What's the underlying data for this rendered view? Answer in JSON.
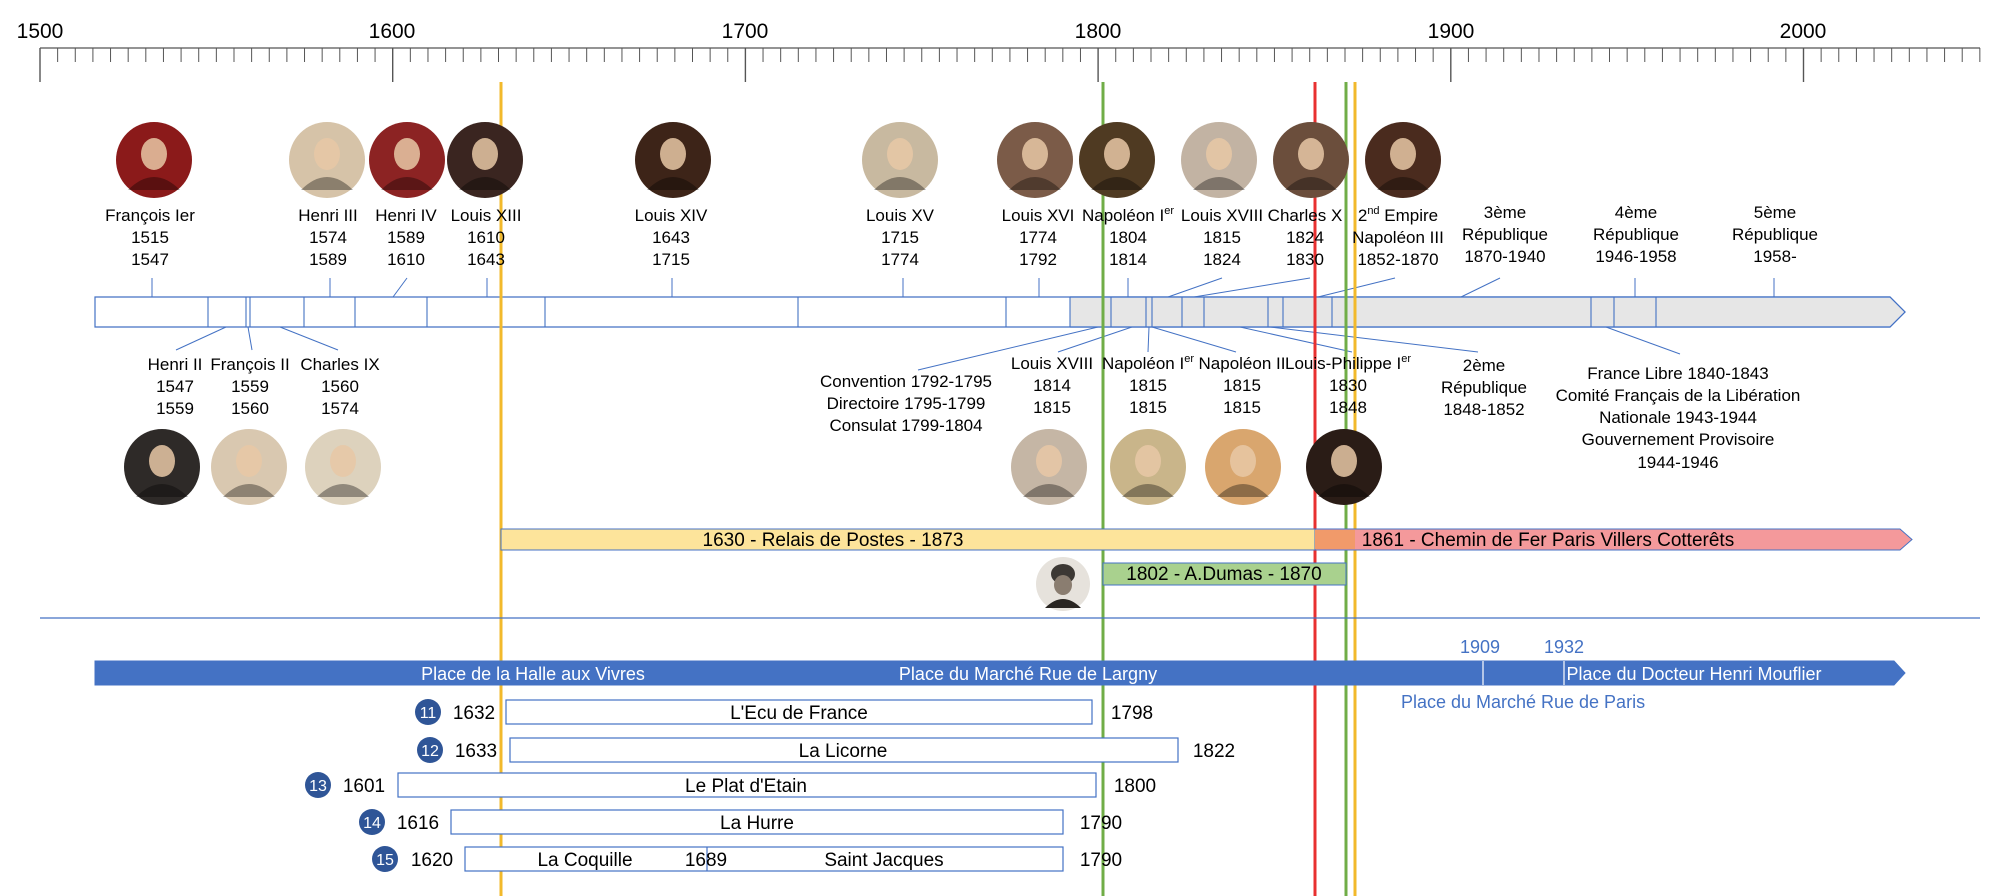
{
  "timeline": {
    "start_year": 1500,
    "end_year": 2050,
    "axis_labels": [
      "1500",
      "1600",
      "1700",
      "1800",
      "1900",
      "2000"
    ]
  },
  "reigns": [
    {
      "id": "francois-ier",
      "name": "François Ier",
      "start": "1515",
      "end": "1547",
      "side": "top",
      "col": "#8b1a1a"
    },
    {
      "id": "henri-ii",
      "name": "Henri II",
      "start": "1547",
      "end": "1559",
      "side": "bottom",
      "col": "#2e2a28"
    },
    {
      "id": "francois-ii",
      "name": "François II",
      "start": "1559",
      "end": "1560",
      "side": "bottom",
      "col": "#d9c8b0"
    },
    {
      "id": "charles-ix",
      "name": "Charles IX",
      "start": "1560",
      "end": "1574",
      "side": "bottom",
      "col": "#ddd2bd"
    },
    {
      "id": "henri-iii",
      "name": "Henri III",
      "start": "1574",
      "end": "1589",
      "side": "top",
      "col": "#d6c3a8"
    },
    {
      "id": "henri-iv",
      "name": "Henri IV",
      "start": "1589",
      "end": "1610",
      "side": "top",
      "col": "#8c2323"
    },
    {
      "id": "louis-xiii",
      "name": "Louis XIII",
      "start": "1610",
      "end": "1643",
      "side": "top",
      "col": "#3a2520"
    },
    {
      "id": "louis-xiv",
      "name": "Louis XIV",
      "start": "1643",
      "end": "1715",
      "side": "top",
      "col": "#3d2418"
    },
    {
      "id": "louis-xv",
      "name": "Louis XV",
      "start": "1715",
      "end": "1774",
      "side": "top",
      "col": "#c8b9a0"
    },
    {
      "id": "louis-xvi",
      "name": "Louis XVI",
      "start": "1774",
      "end": "1792",
      "side": "top",
      "col": "#7b5b48"
    },
    {
      "id": "napoleon-i-a",
      "name": "Napoléon I",
      "sup": "er",
      "start": "1804",
      "end": "1814",
      "side": "top",
      "col": "#4f3a22"
    },
    {
      "id": "louis-xviii-b",
      "name": "Louis XVIII",
      "start": "1815",
      "end": "1824",
      "side": "top",
      "col": "#c2b3a3"
    },
    {
      "id": "charles-x",
      "name": "Charles X",
      "start": "1824",
      "end": "1830",
      "side": "top",
      "col": "#6b4e3c"
    },
    {
      "id": "napoleon-iii",
      "name": "Napoléon III",
      "prefix": "2",
      "prefix_sup": "nd",
      "prefix_rest": " Empire",
      "start": "1852-1870",
      "end": "",
      "side": "top",
      "col": "#4a2b1e"
    }
  ],
  "republics": [
    {
      "id": "3eme",
      "line1": "3ème",
      "line2": "République",
      "line3": "1870-1940"
    },
    {
      "id": "4eme",
      "line1": "4ème",
      "line2": "République",
      "line3": "1946-1958"
    },
    {
      "id": "5eme",
      "line1": "5ème",
      "line2": "République",
      "line3": "1958-"
    }
  ],
  "bottom_reigns": [
    {
      "id": "louis-xviii-a",
      "name": "Louis XVIII",
      "start": "1814",
      "end": "1815",
      "col": "#c5b6a5"
    },
    {
      "id": "napoleon-i-b",
      "name": "Napoléon I",
      "sup": "er",
      "start": "1815",
      "end": "1815",
      "col": "#c9b58a"
    },
    {
      "id": "napoleon-ii",
      "name": "Napoléon II",
      "start": "1815",
      "end": "1815",
      "col": "#d9a66e"
    },
    {
      "id": "louis-philippe",
      "name": "Louis-Philippe I",
      "sup": "er",
      "start": "1830",
      "end": "1848",
      "col": "#2a1c16"
    }
  ],
  "revolution_text": [
    "Convention 1792-1795",
    "Directoire 1795-1799",
    "Consulat 1799-1804"
  ],
  "second_republic": [
    "2ème",
    "République",
    "1848-1852"
  ],
  "france_libre": [
    "France Libre 1840-1843",
    "Comité Français de la Libération",
    "Nationale 1943-1944",
    "Gouvernement Provisoire",
    "1944-1946"
  ],
  "bars": {
    "relais": "1630 - Relais de Postes - 1873",
    "chemin": "1861 - Chemin de Fer Paris  Villers Cotterêts",
    "dumas": "1802 - A.Dumas - 1870"
  },
  "places": {
    "halle": "Place de la Halle aux Vivres",
    "marche_largny": "Place du Marché Rue de Largny",
    "mouflier": "Place du Docteur Henri Mouflier",
    "marche_paris": "Place du Marché Rue de Paris",
    "year_1909": "1909",
    "year_1932": "1932"
  },
  "inns": [
    {
      "num": "11",
      "start": "1632",
      "name": "L'Ecu de France",
      "end": "1798"
    },
    {
      "num": "12",
      "start": "1633",
      "name": "La Licorne",
      "end": "1822"
    },
    {
      "num": "13",
      "start": "1601",
      "name": "Le Plat d'Etain",
      "end": "1800"
    },
    {
      "num": "14",
      "start": "1616",
      "name": "La Hurre",
      "end": "1790"
    },
    {
      "num": "15",
      "start": "1620",
      "name": "La Coquille",
      "mid": "1689",
      "name2": "Saint Jacques",
      "end": "1790"
    }
  ],
  "colors": {
    "line_orange": "#f2b92b",
    "line_green": "#70ad47",
    "line_red": "#e83030",
    "blue": "#4472c4",
    "relais_fill": "#fde49b",
    "chemin_fill": "#f4999b",
    "dumas_fill": "#a9d18e"
  }
}
